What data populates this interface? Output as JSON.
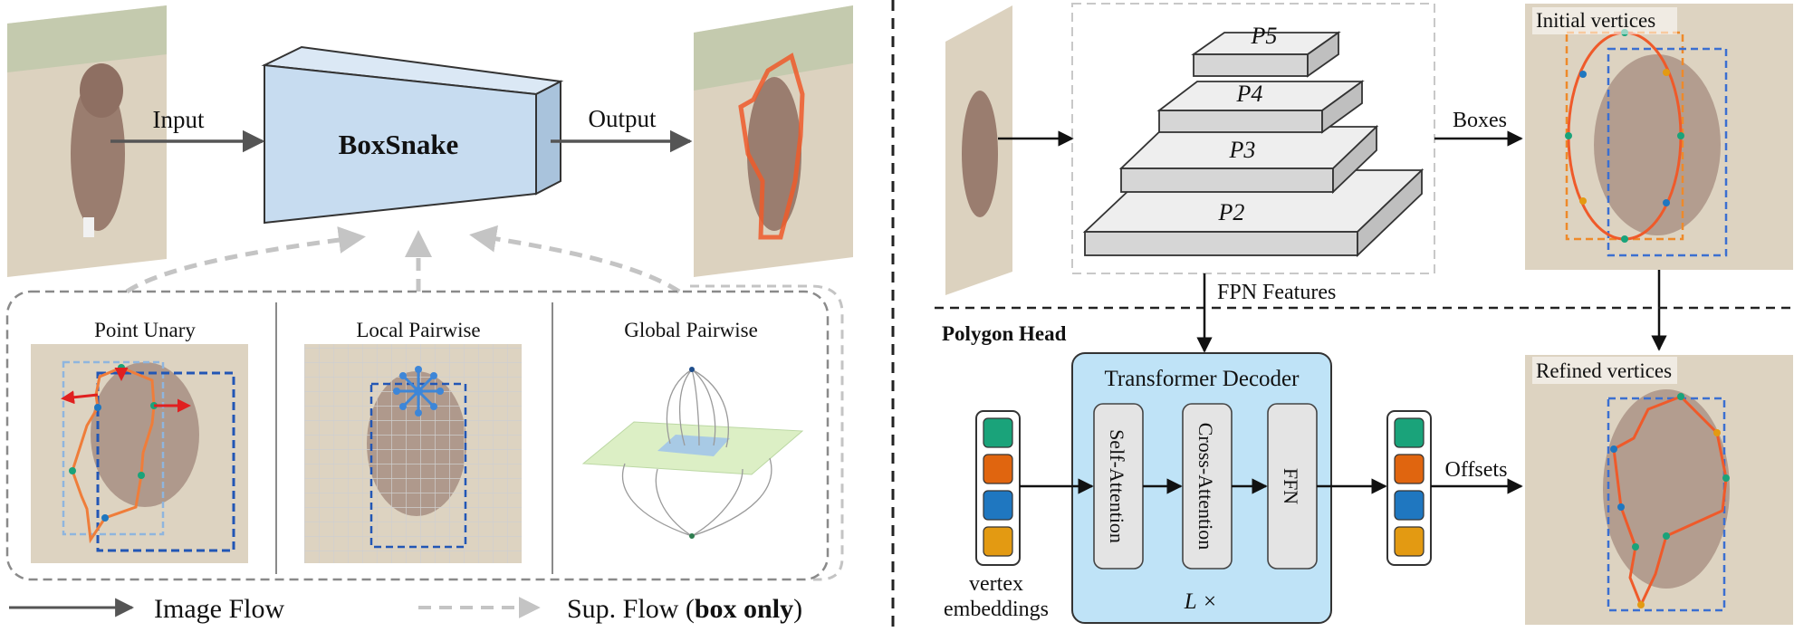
{
  "left_panel": {
    "input_label": "Input",
    "output_label": "Output",
    "model_name": "BoxSnake",
    "loss_boxes": [
      {
        "title": "Point Unary"
      },
      {
        "title": "Local Pairwise"
      },
      {
        "title": "Global Pairwise"
      }
    ],
    "legend": {
      "image_flow": "Image Flow",
      "sup_flow_prefix": "Sup. Flow (",
      "sup_flow_bold": "box only",
      "sup_flow_suffix": ")"
    }
  },
  "right_panel": {
    "fpn_levels": [
      "P5",
      "P4",
      "P3",
      "P2"
    ],
    "fpn_features_label": "FPN Features",
    "boxes_label": "Boxes",
    "initial_vertices_label": "Initial vertices",
    "refined_vertices_label": "Refined vertices",
    "polygon_head_label": "Polygon Head",
    "decoder_title": "Transformer Decoder",
    "decoder_blocks": [
      "Self-Attention",
      "Cross-Attention",
      "FFN"
    ],
    "repeat_label": "L ×",
    "vertex_embeddings_label": [
      "vertex",
      "embeddings"
    ],
    "offsets_label": "Offsets",
    "embedding_colors": [
      "#1aa37a",
      "#e0650f",
      "#1f77c0",
      "#e39a12"
    ]
  },
  "colors": {
    "model_fill": "#c7dcf0",
    "decoder_fill": "#bfe3f7",
    "polygon": "#ef5a2a",
    "box_blue": "#3b6fd1",
    "box_orange": "#ee8a2a",
    "photo_bg": "#d7cdb8"
  }
}
